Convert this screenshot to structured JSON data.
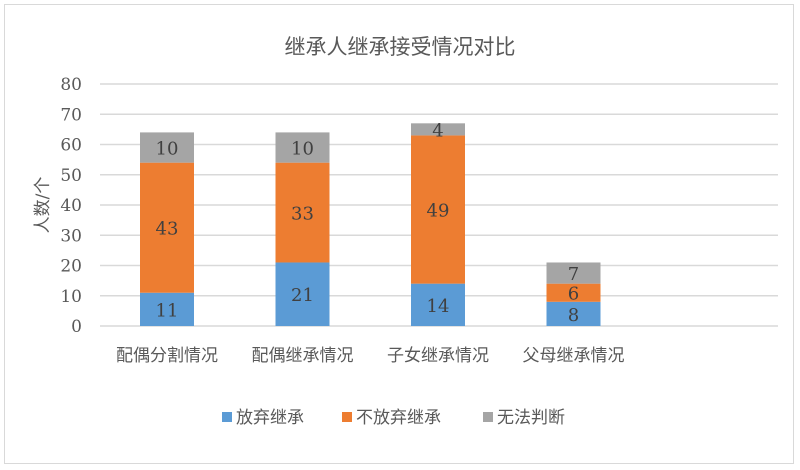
{
  "chart_data": {
    "type": "bar",
    "stacked": true,
    "title": "继承人继承接受情况对比",
    "xlabel": "",
    "ylabel": "人数/个",
    "ylim": [
      0,
      80
    ],
    "yticks": [
      0,
      10,
      20,
      30,
      40,
      50,
      60,
      70,
      80
    ],
    "grid": true,
    "legend_position": "bottom",
    "categories": [
      "配偶分割情况",
      "配偶继承情况",
      "子女继承情况",
      "父母继承情况"
    ],
    "series": [
      {
        "name": "放弃继承",
        "color": "#5b9bd5",
        "values": [
          11,
          21,
          14,
          8
        ]
      },
      {
        "name": "不放弃继承",
        "color": "#ed7d31",
        "values": [
          43,
          33,
          49,
          6
        ]
      },
      {
        "name": "无法判断",
        "color": "#a5a5a5",
        "values": [
          10,
          10,
          4,
          7
        ]
      }
    ]
  }
}
